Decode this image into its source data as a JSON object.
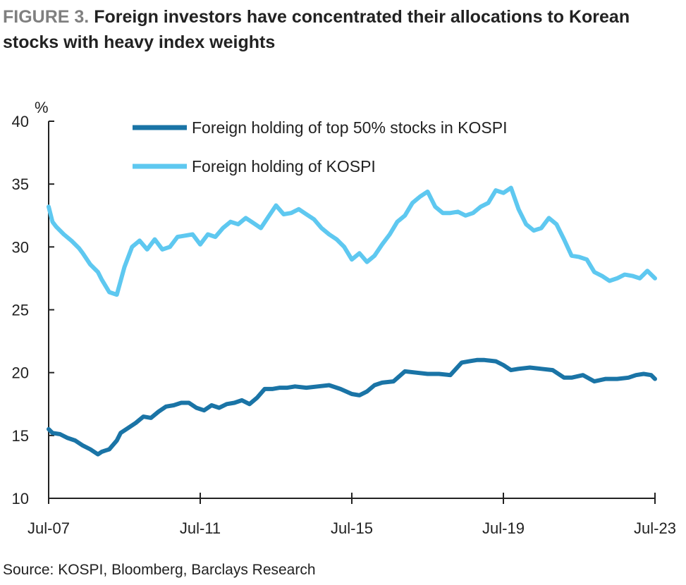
{
  "figure_label": "FIGURE 3.",
  "figure_title": "Foreign investors have concentrated their allocations to Korean stocks with heavy index weights",
  "source": "Source: KOSPI, Bloomberg, Barclays Research",
  "colors": {
    "series_top50": "#1a74a6",
    "series_kospi": "#5ec8f0",
    "axis": "#222222"
  },
  "chart_data": {
    "type": "line",
    "title": "Foreign investors have concentrated their allocations to Korean stocks with heavy index weights",
    "ylabel": "%",
    "xlabel": "",
    "ylim": [
      10,
      40
    ],
    "yticks": [
      "10",
      "15",
      "20",
      "25",
      "30",
      "35",
      "40"
    ],
    "xlim": [
      2007.5,
      2023.5
    ],
    "xticks": [
      {
        "label": "Jul-07",
        "x": 2007.5
      },
      {
        "label": "Jul-11",
        "x": 2011.5
      },
      {
        "label": "Jul-15",
        "x": 2015.5
      },
      {
        "label": "Jul-19",
        "x": 2019.5
      },
      {
        "label": "Jul-23",
        "x": 2023.5
      }
    ],
    "legend_position": "top-center",
    "grid": false,
    "series": [
      {
        "name": "Foreign holding of top 50% stocks in KOSPI",
        "x": [
          2007.5,
          2007.6,
          2007.8,
          2008.0,
          2008.2,
          2008.4,
          2008.6,
          2008.8,
          2008.9,
          2009.0,
          2009.1,
          2009.3,
          2009.4,
          2009.6,
          2009.8,
          2010.0,
          2010.2,
          2010.4,
          2010.6,
          2010.8,
          2011.0,
          2011.2,
          2011.4,
          2011.6,
          2011.8,
          2012.0,
          2012.2,
          2012.4,
          2012.6,
          2012.8,
          2013.0,
          2013.2,
          2013.4,
          2013.6,
          2013.8,
          2014.0,
          2014.3,
          2014.6,
          2014.9,
          2015.2,
          2015.5,
          2015.7,
          2015.9,
          2016.1,
          2016.3,
          2016.6,
          2016.9,
          2017.2,
          2017.5,
          2017.8,
          2018.1,
          2018.4,
          2018.6,
          2018.8,
          2019.0,
          2019.3,
          2019.5,
          2019.7,
          2019.9,
          2020.2,
          2020.5,
          2020.8,
          2021.1,
          2021.3,
          2021.6,
          2021.9,
          2022.2,
          2022.5,
          2022.8,
          2023.0,
          2023.2,
          2023.4,
          2023.5
        ],
        "values": [
          15.5,
          15.2,
          15.1,
          14.8,
          14.6,
          14.2,
          13.9,
          13.5,
          13.7,
          13.8,
          13.9,
          14.6,
          15.2,
          15.6,
          16.0,
          16.5,
          16.4,
          16.9,
          17.3,
          17.4,
          17.6,
          17.6,
          17.2,
          17.0,
          17.4,
          17.2,
          17.5,
          17.6,
          17.8,
          17.5,
          18.0,
          18.7,
          18.7,
          18.8,
          18.8,
          18.9,
          18.8,
          18.9,
          19.0,
          18.7,
          18.3,
          18.2,
          18.5,
          19.0,
          19.2,
          19.3,
          20.1,
          20.0,
          19.9,
          19.9,
          19.8,
          20.8,
          20.9,
          21.0,
          21.0,
          20.9,
          20.6,
          20.2,
          20.3,
          20.4,
          20.3,
          20.2,
          19.6,
          19.6,
          19.8,
          19.3,
          19.5,
          19.5,
          19.6,
          19.8,
          19.9,
          19.8,
          19.5
        ]
      },
      {
        "name": "Foreign holding of KOSPI",
        "x": [
          2007.5,
          2007.6,
          2007.7,
          2007.9,
          2008.1,
          2008.3,
          2008.4,
          2008.6,
          2008.8,
          2008.9,
          2009.1,
          2009.3,
          2009.5,
          2009.7,
          2009.9,
          2010.1,
          2010.3,
          2010.5,
          2010.7,
          2010.9,
          2011.1,
          2011.3,
          2011.5,
          2011.7,
          2011.9,
          2012.1,
          2012.3,
          2012.5,
          2012.7,
          2012.9,
          2013.1,
          2013.3,
          2013.5,
          2013.7,
          2013.9,
          2014.1,
          2014.3,
          2014.5,
          2014.7,
          2014.9,
          2015.1,
          2015.3,
          2015.5,
          2015.7,
          2015.9,
          2016.1,
          2016.3,
          2016.5,
          2016.7,
          2016.9,
          2017.1,
          2017.3,
          2017.5,
          2017.7,
          2017.9,
          2018.1,
          2018.3,
          2018.5,
          2018.7,
          2018.9,
          2019.1,
          2019.3,
          2019.5,
          2019.7,
          2019.9,
          2020.1,
          2020.3,
          2020.5,
          2020.7,
          2020.9,
          2021.1,
          2021.3,
          2021.5,
          2021.7,
          2021.9,
          2022.1,
          2022.3,
          2022.5,
          2022.7,
          2022.9,
          2023.1,
          2023.3,
          2023.5
        ],
        "values": [
          33.2,
          32.0,
          31.6,
          31.0,
          30.5,
          29.9,
          29.5,
          28.6,
          28.0,
          27.4,
          26.4,
          26.2,
          28.4,
          30.0,
          30.5,
          29.8,
          30.6,
          29.8,
          30.0,
          30.8,
          30.9,
          31.0,
          30.2,
          31.0,
          30.8,
          31.5,
          32.0,
          31.8,
          32.3,
          31.9,
          31.5,
          32.4,
          33.3,
          32.6,
          32.7,
          33.0,
          32.6,
          32.2,
          31.5,
          31.0,
          30.6,
          30.0,
          29.0,
          29.5,
          28.8,
          29.3,
          30.2,
          31.0,
          32.0,
          32.5,
          33.5,
          34.0,
          34.4,
          33.2,
          32.7,
          32.7,
          32.8,
          32.5,
          32.7,
          33.2,
          33.5,
          34.5,
          34.3,
          34.7,
          33.0,
          31.8,
          31.3,
          31.5,
          32.3,
          31.8,
          30.6,
          29.3,
          29.2,
          29.0,
          28.0,
          27.7,
          27.3,
          27.5,
          27.8,
          27.7,
          27.5,
          28.1,
          27.5
        ]
      }
    ]
  }
}
